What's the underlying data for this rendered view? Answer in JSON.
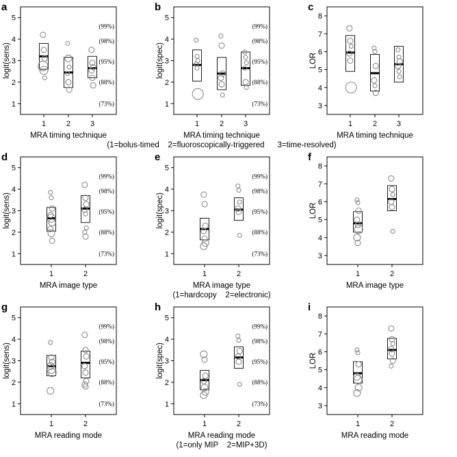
{
  "chart_data": [
    {
      "id": "a",
      "type": "box-scatter",
      "ylabel": "logit(sens)",
      "xlabel": "MRA timing technique",
      "note": "",
      "ylim": [
        0.5,
        5.5
      ],
      "yticks": [
        1,
        2,
        3,
        4,
        5
      ],
      "categories": [
        "1",
        "2",
        "3"
      ],
      "ref_lines": [
        {
          "y": 4.6,
          "label": "(99%)"
        },
        {
          "y": 3.9,
          "label": "(98%)"
        },
        {
          "y": 2.95,
          "label": "(95%)"
        },
        {
          "y": 2.0,
          "label": "(88%)"
        },
        {
          "y": 1.0,
          "label": "(73%)"
        }
      ],
      "groups": [
        {
          "box": [
            2.6,
            3.8
          ],
          "median": 3.2,
          "points": [
            {
              "y": 4.2,
              "r": 4
            },
            {
              "y": 3.5,
              "r": 4
            },
            {
              "y": 3.1,
              "r": 4
            },
            {
              "y": 2.75,
              "r": 7
            },
            {
              "y": 2.55,
              "r": 6
            },
            {
              "y": 2.2,
              "r": 3
            }
          ]
        },
        {
          "box": [
            1.75,
            3.15
          ],
          "median": 2.45,
          "points": [
            {
              "y": 3.8,
              "r": 3
            },
            {
              "y": 3.1,
              "r": 5
            },
            {
              "y": 2.7,
              "r": 3
            },
            {
              "y": 2.4,
              "r": 3
            },
            {
              "y": 2.0,
              "r": 4
            },
            {
              "y": 1.65,
              "r": 4
            }
          ]
        },
        {
          "box": [
            2.2,
            3.2
          ],
          "median": 2.65,
          "points": [
            {
              "y": 3.5,
              "r": 4
            },
            {
              "y": 2.9,
              "r": 4
            },
            {
              "y": 2.7,
              "r": 4
            },
            {
              "y": 2.55,
              "r": 4
            },
            {
              "y": 2.2,
              "r": 4
            },
            {
              "y": 1.85,
              "r": 4
            }
          ]
        }
      ]
    },
    {
      "id": "b",
      "type": "box-scatter",
      "ylabel": "logit(spec)",
      "xlabel": "MRA timing technique",
      "note": "(1=bolus-timed    2=fluoroscopically-triggered      3=time-resolved)",
      "ylim": [
        0.5,
        5.5
      ],
      "yticks": [
        1,
        2,
        3,
        4,
        5
      ],
      "categories": [
        "1",
        "2",
        "3"
      ],
      "ref_lines": [
        {
          "y": 4.6,
          "label": "(99%)"
        },
        {
          "y": 3.9,
          "label": "(98%)"
        },
        {
          "y": 2.95,
          "label": "(95%)"
        },
        {
          "y": 2.0,
          "label": "(88%)"
        },
        {
          "y": 1.0,
          "label": "(73%)"
        }
      ],
      "groups": [
        {
          "box": [
            2.05,
            3.5
          ],
          "median": 2.8,
          "points": [
            {
              "y": 3.95,
              "r": 3
            },
            {
              "y": 3.2,
              "r": 3
            },
            {
              "y": 3.0,
              "r": 3
            },
            {
              "y": 2.85,
              "r": 3
            },
            {
              "y": 2.65,
              "r": 3
            },
            {
              "y": 1.45,
              "r": 8
            }
          ]
        },
        {
          "box": [
            1.65,
            3.15
          ],
          "median": 2.4,
          "points": [
            {
              "y": 4.15,
              "r": 3
            },
            {
              "y": 3.7,
              "r": 4
            },
            {
              "y": 2.4,
              "r": 4
            },
            {
              "y": 2.2,
              "r": 4
            },
            {
              "y": 1.9,
              "r": 4
            },
            {
              "y": 1.4,
              "r": 3
            }
          ]
        },
        {
          "box": [
            1.85,
            3.4
          ],
          "median": 2.65,
          "points": [
            {
              "y": 3.4,
              "r": 3
            },
            {
              "y": 3.15,
              "r": 3
            },
            {
              "y": 2.9,
              "r": 3
            },
            {
              "y": 2.65,
              "r": 3
            },
            {
              "y": 2.0,
              "r": 4
            },
            {
              "y": 1.75,
              "r": 3
            }
          ]
        }
      ]
    },
    {
      "id": "c",
      "type": "box-scatter",
      "ylabel": "LOR",
      "xlabel": "MRA timing technique",
      "note": "",
      "ylim": [
        2.5,
        8.5
      ],
      "yticks": [
        3,
        4,
        5,
        6,
        7,
        8
      ],
      "categories": [
        "1",
        "2",
        "3"
      ],
      "ref_lines": [],
      "groups": [
        {
          "box": [
            4.9,
            6.9
          ],
          "median": 5.95,
          "points": [
            {
              "y": 7.3,
              "r": 4
            },
            {
              "y": 6.6,
              "r": 4
            },
            {
              "y": 6.3,
              "r": 3
            },
            {
              "y": 5.9,
              "r": 4
            },
            {
              "y": 5.5,
              "r": 4
            },
            {
              "y": 4.0,
              "r": 8
            }
          ]
        },
        {
          "box": [
            3.8,
            5.85
          ],
          "median": 4.8,
          "points": [
            {
              "y": 6.2,
              "r": 3
            },
            {
              "y": 6.0,
              "r": 3
            },
            {
              "y": 5.2,
              "r": 4
            },
            {
              "y": 4.4,
              "r": 4
            },
            {
              "y": 4.1,
              "r": 3
            },
            {
              "y": 3.7,
              "r": 4
            }
          ]
        },
        {
          "box": [
            4.3,
            6.3
          ],
          "median": 5.3,
          "points": [
            {
              "y": 6.1,
              "r": 3
            },
            {
              "y": 5.7,
              "r": 3
            },
            {
              "y": 5.45,
              "r": 4
            },
            {
              "y": 5.2,
              "r": 4
            },
            {
              "y": 4.9,
              "r": 3
            },
            {
              "y": 4.6,
              "r": 3
            }
          ]
        }
      ]
    },
    {
      "id": "d",
      "type": "box-scatter",
      "ylabel": "logit(sens)",
      "xlabel": "MRA image type",
      "note": "",
      "ylim": [
        0.5,
        5.5
      ],
      "yticks": [
        1,
        2,
        3,
        4,
        5
      ],
      "categories": [
        "1",
        "2"
      ],
      "ref_lines": [
        {
          "y": 4.6,
          "label": "(99%)"
        },
        {
          "y": 3.9,
          "label": "(98%)"
        },
        {
          "y": 2.95,
          "label": "(95%)"
        },
        {
          "y": 2.0,
          "label": "(88%)"
        },
        {
          "y": 1.0,
          "label": "(73%)"
        }
      ],
      "groups": [
        {
          "box": [
            2.05,
            3.15
          ],
          "median": 2.65,
          "points": [
            {
              "y": 3.85,
              "r": 3
            },
            {
              "y": 3.6,
              "r": 3
            },
            {
              "y": 3.1,
              "r": 4
            },
            {
              "y": 2.8,
              "r": 4
            },
            {
              "y": 2.65,
              "r": 6
            },
            {
              "y": 2.45,
              "r": 5
            },
            {
              "y": 2.15,
              "r": 4
            },
            {
              "y": 1.95,
              "r": 5
            },
            {
              "y": 1.6,
              "r": 4
            }
          ]
        },
        {
          "box": [
            2.45,
            3.7
          ],
          "median": 3.1,
          "points": [
            {
              "y": 4.2,
              "r": 4
            },
            {
              "y": 3.6,
              "r": 4
            },
            {
              "y": 3.3,
              "r": 4
            },
            {
              "y": 3.05,
              "r": 4
            },
            {
              "y": 2.85,
              "r": 3
            },
            {
              "y": 2.2,
              "r": 3
            },
            {
              "y": 2.0,
              "r": 3
            },
            {
              "y": 1.8,
              "r": 4
            }
          ]
        }
      ]
    },
    {
      "id": "e",
      "type": "box-scatter",
      "ylabel": "logit(spec)",
      "xlabel": "MRA image type",
      "note": "(1=hardcopy    2=electronic)",
      "ylim": [
        0.5,
        5.5
      ],
      "yticks": [
        1,
        2,
        3,
        4,
        5
      ],
      "categories": [
        "1",
        "2"
      ],
      "ref_lines": [
        {
          "y": 4.6,
          "label": "(99%)"
        },
        {
          "y": 3.9,
          "label": "(98%)"
        },
        {
          "y": 2.95,
          "label": "(95%)"
        },
        {
          "y": 2.0,
          "label": "(88%)"
        },
        {
          "y": 1.0,
          "label": "(73%)"
        }
      ],
      "groups": [
        {
          "box": [
            1.65,
            2.65
          ],
          "median": 2.15,
          "points": [
            {
              "y": 3.75,
              "r": 4
            },
            {
              "y": 3.3,
              "r": 4
            },
            {
              "y": 2.3,
              "r": 4
            },
            {
              "y": 2.05,
              "r": 4
            },
            {
              "y": 1.7,
              "r": 4
            },
            {
              "y": 1.5,
              "r": 5
            },
            {
              "y": 1.35,
              "r": 5
            }
          ]
        },
        {
          "box": [
            2.55,
            3.6
          ],
          "median": 3.05,
          "points": [
            {
              "y": 4.15,
              "r": 3
            },
            {
              "y": 3.95,
              "r": 3
            },
            {
              "y": 3.4,
              "r": 3
            },
            {
              "y": 3.1,
              "r": 4
            },
            {
              "y": 2.95,
              "r": 4
            },
            {
              "y": 1.85,
              "r": 3
            }
          ]
        }
      ]
    },
    {
      "id": "f",
      "type": "box-scatter",
      "ylabel": "LOR",
      "xlabel": "MRA image type",
      "note": "",
      "ylim": [
        2.5,
        8.5
      ],
      "yticks": [
        3,
        4,
        5,
        6,
        7,
        8
      ],
      "categories": [
        "1",
        "2"
      ],
      "ref_lines": [],
      "groups": [
        {
          "box": [
            4.3,
            5.45
          ],
          "median": 4.8,
          "points": [
            {
              "y": 6.1,
              "r": 3
            },
            {
              "y": 5.95,
              "r": 3
            },
            {
              "y": 5.5,
              "r": 4
            },
            {
              "y": 5.0,
              "r": 4
            },
            {
              "y": 4.7,
              "r": 4
            },
            {
              "y": 4.45,
              "r": 6
            },
            {
              "y": 4.0,
              "r": 5
            },
            {
              "y": 3.7,
              "r": 4
            }
          ]
        },
        {
          "box": [
            5.5,
            6.9
          ],
          "median": 6.15,
          "points": [
            {
              "y": 7.3,
              "r": 4
            },
            {
              "y": 6.7,
              "r": 4
            },
            {
              "y": 6.4,
              "r": 3
            },
            {
              "y": 6.0,
              "r": 4
            },
            {
              "y": 5.7,
              "r": 4
            },
            {
              "y": 4.35,
              "r": 3
            }
          ]
        }
      ]
    },
    {
      "id": "g",
      "type": "box-scatter",
      "ylabel": "logit(sens)",
      "xlabel": "MRA reading mode",
      "note": "",
      "ylim": [
        0.5,
        5.5
      ],
      "yticks": [
        1,
        2,
        3,
        4,
        5
      ],
      "categories": [
        "1",
        "2"
      ],
      "ref_lines": [
        {
          "y": 4.6,
          "label": "(99%)"
        },
        {
          "y": 3.9,
          "label": "(98%)"
        },
        {
          "y": 2.95,
          "label": "(95%)"
        },
        {
          "y": 2.0,
          "label": "(88%)"
        },
        {
          "y": 1.0,
          "label": "(73%)"
        }
      ],
      "groups": [
        {
          "box": [
            2.3,
            3.25
          ],
          "median": 2.75,
          "points": [
            {
              "y": 3.85,
              "r": 3
            },
            {
              "y": 3.15,
              "r": 4
            },
            {
              "y": 2.95,
              "r": 4
            },
            {
              "y": 2.75,
              "r": 5
            },
            {
              "y": 2.6,
              "r": 6
            },
            {
              "y": 2.45,
              "r": 6
            },
            {
              "y": 1.6,
              "r": 5
            }
          ]
        },
        {
          "box": [
            2.2,
            3.45
          ],
          "median": 2.9,
          "points": [
            {
              "y": 4.2,
              "r": 4
            },
            {
              "y": 3.5,
              "r": 4
            },
            {
              "y": 3.2,
              "r": 4
            },
            {
              "y": 2.75,
              "r": 4
            },
            {
              "y": 2.45,
              "r": 4
            },
            {
              "y": 2.05,
              "r": 4
            },
            {
              "y": 1.9,
              "r": 4
            },
            {
              "y": 1.8,
              "r": 4
            }
          ]
        }
      ]
    },
    {
      "id": "h",
      "type": "box-scatter",
      "ylabel": "logit(spec)",
      "xlabel": "MRA reading mode",
      "note": "(1=only MIP    2=MIP+3D)",
      "ylim": [
        0.5,
        5.5
      ],
      "yticks": [
        1,
        2,
        3,
        4,
        5
      ],
      "categories": [
        "1",
        "2"
      ],
      "ref_lines": [
        {
          "y": 4.6,
          "label": "(99%)"
        },
        {
          "y": 3.9,
          "label": "(98%)"
        },
        {
          "y": 2.95,
          "label": "(95%)"
        },
        {
          "y": 2.0,
          "label": "(88%)"
        },
        {
          "y": 1.0,
          "label": "(73%)"
        }
      ],
      "groups": [
        {
          "box": [
            1.65,
            2.55
          ],
          "median": 2.1,
          "points": [
            {
              "y": 3.3,
              "r": 5
            },
            {
              "y": 3.05,
              "r": 4
            },
            {
              "y": 2.3,
              "r": 4
            },
            {
              "y": 2.05,
              "r": 4
            },
            {
              "y": 1.75,
              "r": 5
            },
            {
              "y": 1.55,
              "r": 5
            },
            {
              "y": 1.4,
              "r": 5
            }
          ]
        },
        {
          "box": [
            2.65,
            3.65
          ],
          "median": 3.15,
          "points": [
            {
              "y": 4.15,
              "r": 3
            },
            {
              "y": 3.95,
              "r": 3
            },
            {
              "y": 3.45,
              "r": 4
            },
            {
              "y": 3.2,
              "r": 4
            },
            {
              "y": 2.95,
              "r": 4
            },
            {
              "y": 1.9,
              "r": 3
            }
          ]
        }
      ]
    },
    {
      "id": "i",
      "type": "box-scatter",
      "ylabel": "LOR",
      "xlabel": "MRA reading mode",
      "note": "",
      "ylim": [
        2.5,
        8.5
      ],
      "yticks": [
        3,
        4,
        5,
        6,
        7,
        8
      ],
      "categories": [
        "1",
        "2"
      ],
      "ref_lines": [],
      "groups": [
        {
          "box": [
            4.25,
            5.45
          ],
          "median": 4.8,
          "points": [
            {
              "y": 6.1,
              "r": 3
            },
            {
              "y": 5.95,
              "r": 3
            },
            {
              "y": 5.3,
              "r": 4
            },
            {
              "y": 4.6,
              "r": 5
            },
            {
              "y": 4.45,
              "r": 6
            },
            {
              "y": 4.0,
              "r": 5
            },
            {
              "y": 3.7,
              "r": 5
            }
          ]
        },
        {
          "box": [
            5.6,
            6.75
          ],
          "median": 6.1,
          "points": [
            {
              "y": 7.3,
              "r": 4
            },
            {
              "y": 6.7,
              "r": 4
            },
            {
              "y": 6.45,
              "r": 3
            },
            {
              "y": 6.15,
              "r": 4
            },
            {
              "y": 5.9,
              "r": 4
            },
            {
              "y": 5.5,
              "r": 4
            },
            {
              "y": 5.2,
              "r": 3
            }
          ]
        }
      ]
    }
  ]
}
